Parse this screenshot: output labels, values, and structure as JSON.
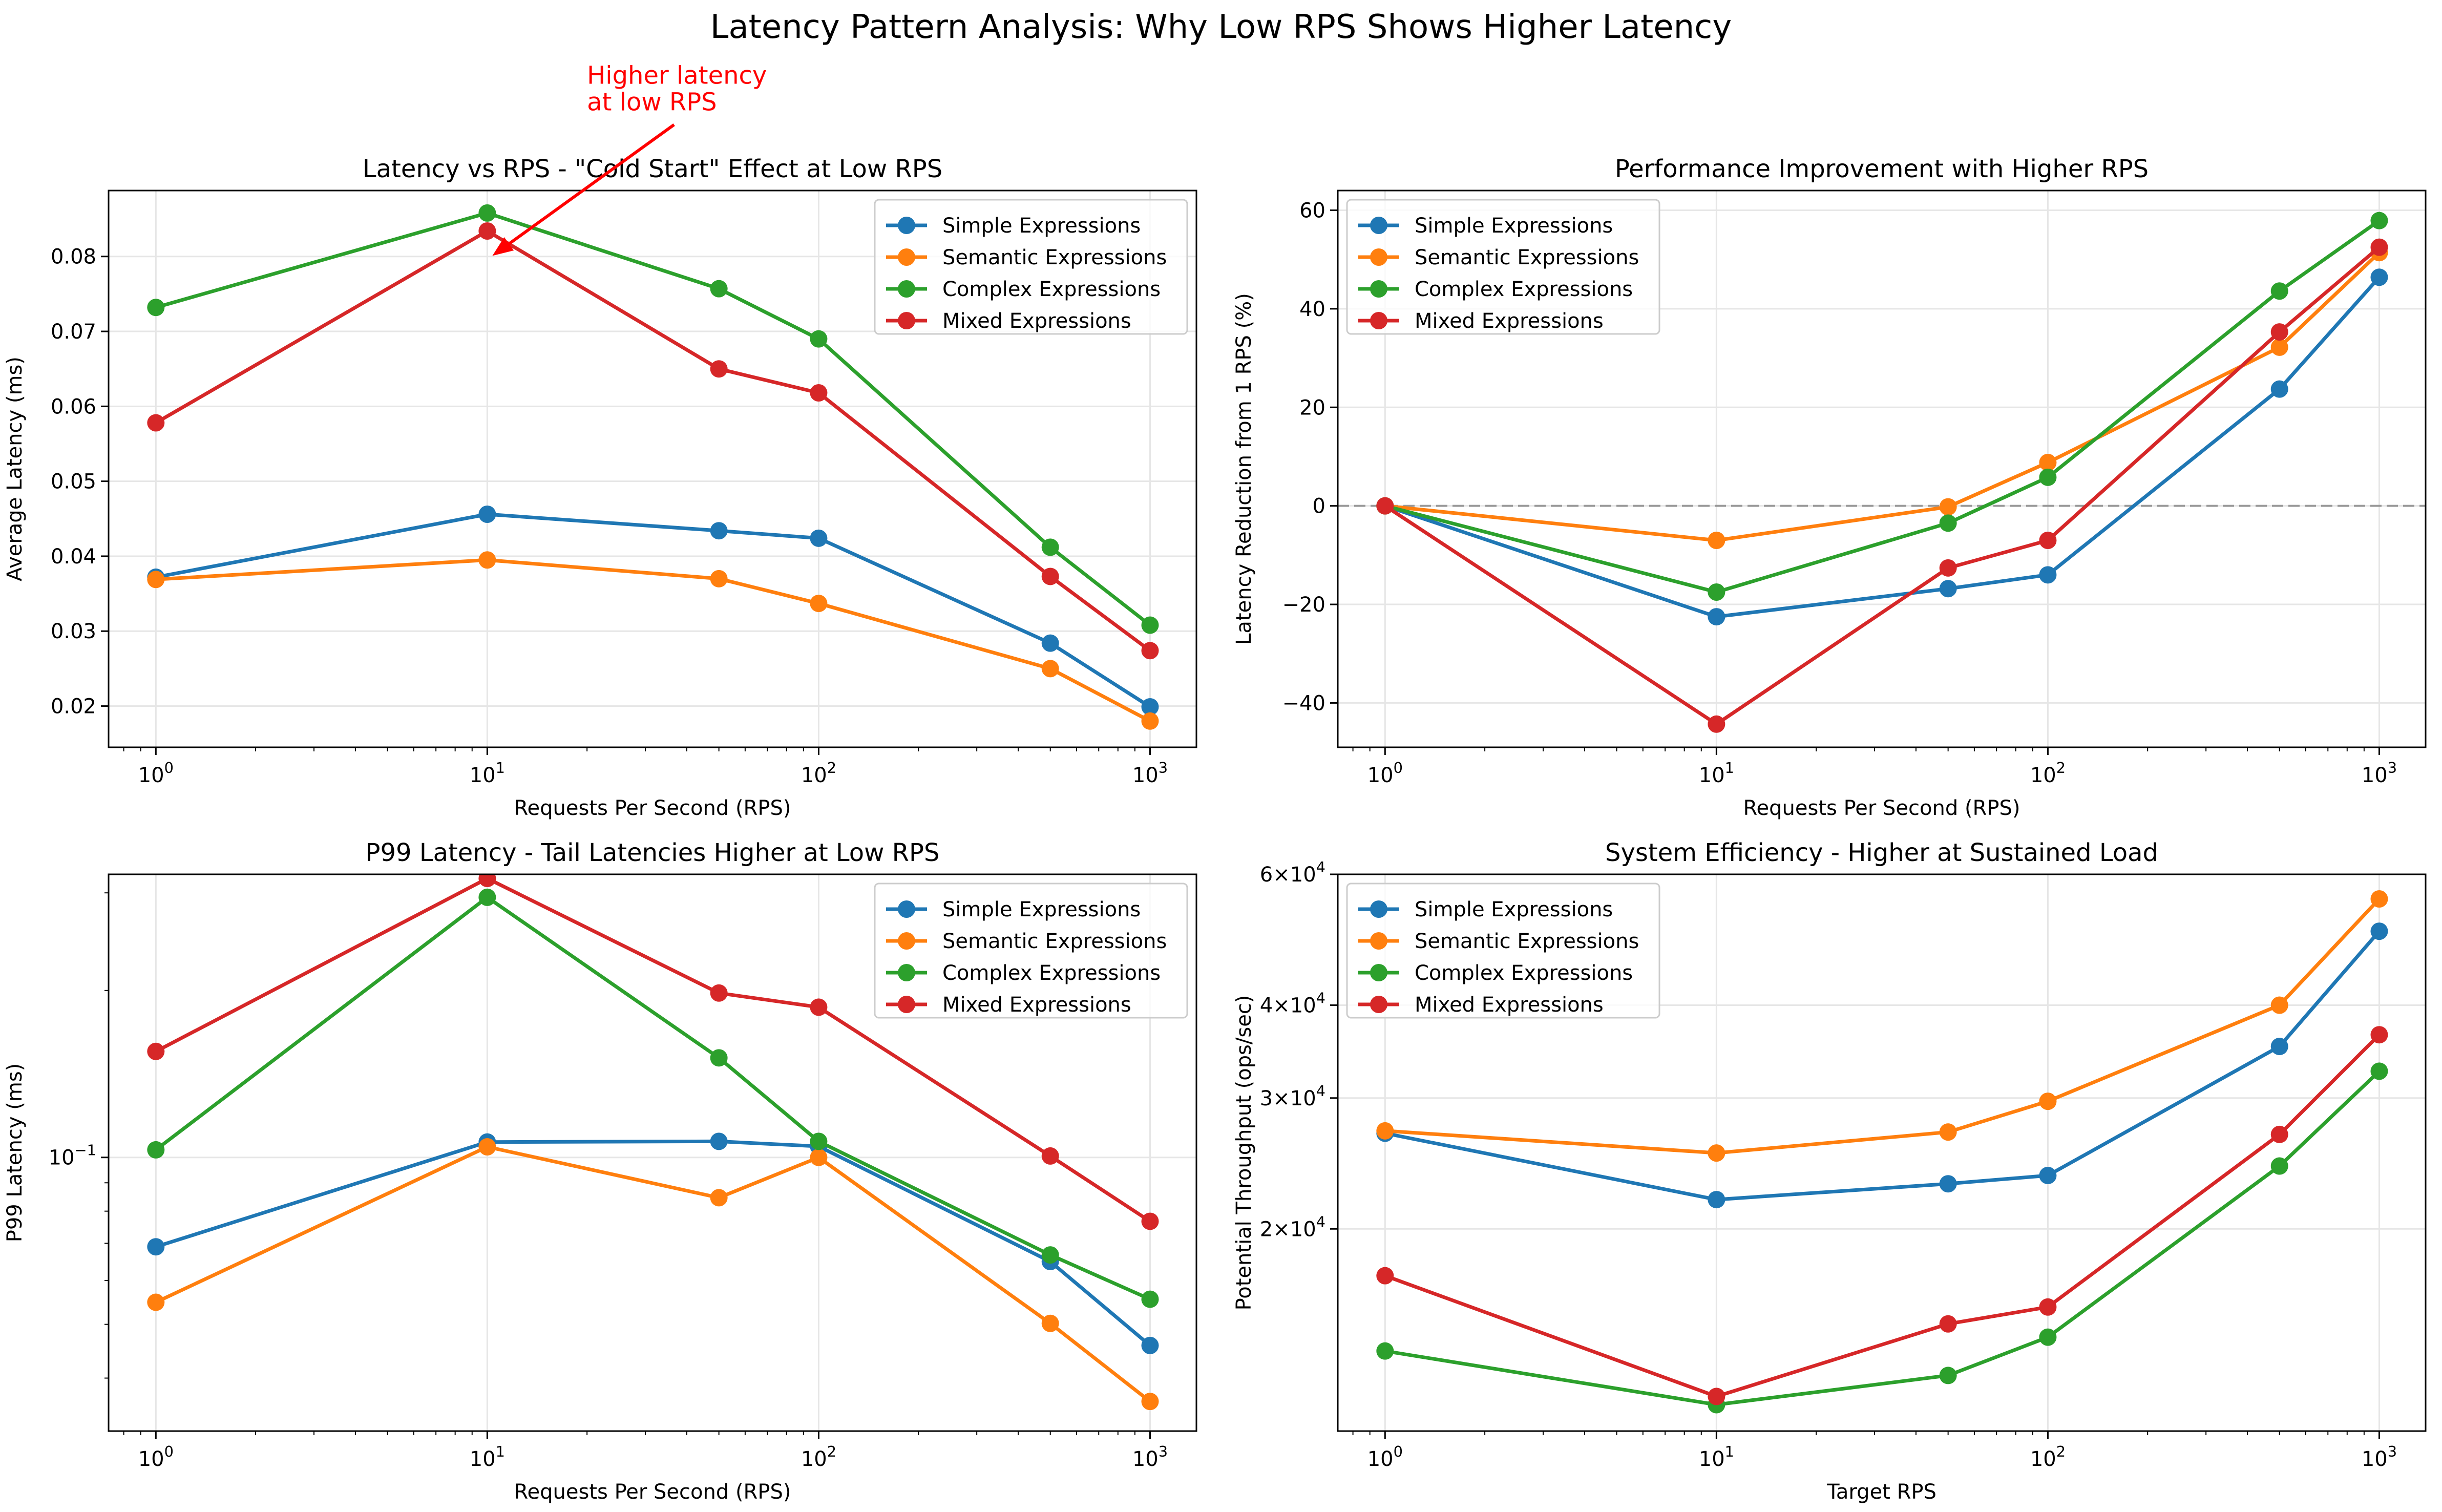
{
  "figure": {
    "suptitle": "Latency Pattern Analysis: Why Low RPS Shows Higher Latency",
    "colors": {
      "Simple Expressions": "#1f77b4",
      "Semantic Expressions": "#ff7f0e",
      "Complex Expressions": "#2ca02c",
      "Mixed Expressions": "#d62728",
      "annotation": "#ff0000",
      "zero_line": "#808080",
      "grid": "#e6e6e6"
    }
  },
  "chart_data": [
    {
      "type": "line",
      "title": "Latency vs RPS - \"Cold Start\" Effect at Low RPS",
      "xlabel": "Requests Per Second (RPS)",
      "ylabel": "Average Latency (ms)",
      "xscale": "log",
      "yscale": "linear",
      "xlim": [
        0.72,
        1380
      ],
      "ylim": [
        0.0145,
        0.0888
      ],
      "xticks": [
        {
          "value": 1,
          "base": "10",
          "exp": "0"
        },
        {
          "value": 10,
          "base": "10",
          "exp": "1"
        },
        {
          "value": 100,
          "base": "10",
          "exp": "2"
        },
        {
          "value": 1000,
          "base": "10",
          "exp": "3"
        }
      ],
      "yticks": [
        {
          "value": 0.02,
          "label": "0.02"
        },
        {
          "value": 0.03,
          "label": "0.03"
        },
        {
          "value": 0.04,
          "label": "0.04"
        },
        {
          "value": 0.05,
          "label": "0.05"
        },
        {
          "value": 0.06,
          "label": "0.06"
        },
        {
          "value": 0.07,
          "label": "0.07"
        },
        {
          "value": 0.08,
          "label": "0.08"
        }
      ],
      "grid": true,
      "legend": "upper right",
      "x": [
        1,
        10,
        50,
        100,
        500,
        1000
      ],
      "series": [
        {
          "name": "Simple Expressions",
          "values": [
            0.0372,
            0.0456,
            0.0434,
            0.0424,
            0.0284,
            0.0199
          ]
        },
        {
          "name": "Semantic Expressions",
          "values": [
            0.0369,
            0.0395,
            0.037,
            0.0337,
            0.025,
            0.018
          ]
        },
        {
          "name": "Complex Expressions",
          "values": [
            0.0732,
            0.0858,
            0.0757,
            0.069,
            0.0412,
            0.0308
          ]
        },
        {
          "name": "Mixed Expressions",
          "values": [
            0.0578,
            0.0834,
            0.065,
            0.0618,
            0.0373,
            0.0274
          ]
        }
      ],
      "annotations": [
        {
          "text": "Higher latency\nat low RPS",
          "text_x": 20,
          "text_y": 0.0995,
          "arrow_x": 10,
          "arrow_y": 0.0805
        }
      ]
    },
    {
      "type": "line",
      "title": "Performance Improvement with Higher RPS",
      "xlabel": "Requests Per Second (RPS)",
      "ylabel": "Latency Reduction from 1 RPS (%)",
      "xscale": "log",
      "yscale": "linear",
      "xlim": [
        0.72,
        1380
      ],
      "ylim": [
        -49,
        64
      ],
      "xticks": [
        {
          "value": 1,
          "base": "10",
          "exp": "0"
        },
        {
          "value": 10,
          "base": "10",
          "exp": "1"
        },
        {
          "value": 100,
          "base": "10",
          "exp": "2"
        },
        {
          "value": 1000,
          "base": "10",
          "exp": "3"
        }
      ],
      "yticks": [
        {
          "value": -40,
          "label": "−40"
        },
        {
          "value": -20,
          "label": "−20"
        },
        {
          "value": 0,
          "label": "0"
        },
        {
          "value": 20,
          "label": "20"
        },
        {
          "value": 40,
          "label": "40"
        },
        {
          "value": 60,
          "label": "60"
        }
      ],
      "hline": 0,
      "grid": true,
      "legend": "upper left",
      "x": [
        1,
        10,
        50,
        100,
        500,
        1000
      ],
      "series": [
        {
          "name": "Simple Expressions",
          "values": [
            0,
            -22.5,
            -16.8,
            -14.0,
            23.7,
            46.4
          ]
        },
        {
          "name": "Semantic Expressions",
          "values": [
            0,
            -7.0,
            -0.2,
            8.8,
            32.2,
            51.4
          ]
        },
        {
          "name": "Complex Expressions",
          "values": [
            0,
            -17.5,
            -3.5,
            5.8,
            43.6,
            57.9
          ]
        },
        {
          "name": "Mixed Expressions",
          "values": [
            0,
            -44.3,
            -12.6,
            -7.0,
            35.3,
            52.5
          ]
        }
      ]
    },
    {
      "type": "line",
      "title": "P99 Latency - Tail Latencies Higher at Low RPS",
      "xlabel": "Requests Per Second (RPS)",
      "ylabel": "P99 Latency (ms)",
      "xscale": "log",
      "yscale": "log",
      "xlim": [
        0.72,
        1380
      ],
      "ylim": [
        0.0321,
        0.324
      ],
      "xticks": [
        {
          "value": 1,
          "base": "10",
          "exp": "0"
        },
        {
          "value": 10,
          "base": "10",
          "exp": "1"
        },
        {
          "value": 100,
          "base": "10",
          "exp": "2"
        },
        {
          "value": 1000,
          "base": "10",
          "exp": "3"
        }
      ],
      "yticks": [
        {
          "value": 0.1,
          "base": "10",
          "exp": "−1"
        }
      ],
      "yminor": [
        0.04,
        0.05,
        0.06,
        0.07,
        0.08,
        0.09,
        0.2,
        0.3
      ],
      "grid": true,
      "legend": "upper right",
      "x": [
        1,
        10,
        50,
        100,
        500,
        1000
      ],
      "series": [
        {
          "name": "Simple Expressions",
          "values": [
            0.069,
            0.1066,
            0.1069,
            0.1047,
            0.0649,
            0.0458
          ]
        },
        {
          "name": "Semantic Expressions",
          "values": [
            0.0548,
            0.1045,
            0.0846,
            0.1,
            0.0502,
            0.0363
          ]
        },
        {
          "name": "Complex Expressions",
          "values": [
            0.1032,
            0.2945,
            0.1512,
            0.1069,
            0.0667,
            0.0555
          ]
        },
        {
          "name": "Mixed Expressions",
          "values": [
            0.1553,
            0.3185,
            0.1979,
            0.1866,
            0.1006,
            0.0767
          ]
        }
      ]
    },
    {
      "type": "line",
      "title": "System Efficiency - Higher at Sustained Load",
      "xlabel": "Target RPS",
      "ylabel": "Potential Throughput (ops/sec)",
      "xscale": "log",
      "yscale": "log",
      "xlim": [
        0.72,
        1380
      ],
      "ylim": [
        10690,
        60000
      ],
      "xticks": [
        {
          "value": 1,
          "base": "10",
          "exp": "0"
        },
        {
          "value": 10,
          "base": "10",
          "exp": "1"
        },
        {
          "value": 100,
          "base": "10",
          "exp": "2"
        },
        {
          "value": 1000,
          "base": "10",
          "exp": "3"
        }
      ],
      "yticks": [
        {
          "value": 20000,
          "mant": "2",
          "base": "10",
          "exp": "4"
        },
        {
          "value": 30000,
          "mant": "3",
          "base": "10",
          "exp": "4"
        },
        {
          "value": 40000,
          "mant": "4",
          "base": "10",
          "exp": "4"
        },
        {
          "value": 60000,
          "mant": "6",
          "base": "10",
          "exp": "4"
        }
      ],
      "grid": true,
      "legend": "upper left",
      "x": [
        1,
        10,
        50,
        100,
        500,
        1000
      ],
      "series": [
        {
          "name": "Simple Expressions",
          "values": [
            26900,
            21900,
            23000,
            23600,
            35200,
            50300
          ]
        },
        {
          "name": "Semantic Expressions",
          "values": [
            27100,
            25300,
            27000,
            29700,
            40000,
            55600
          ]
        },
        {
          "name": "Complex Expressions",
          "values": [
            13700,
            11600,
            12700,
            14300,
            24300,
            32600
          ]
        },
        {
          "name": "Mixed Expressions",
          "values": [
            17300,
            11900,
            14900,
            15700,
            26800,
            36500
          ]
        }
      ]
    }
  ]
}
